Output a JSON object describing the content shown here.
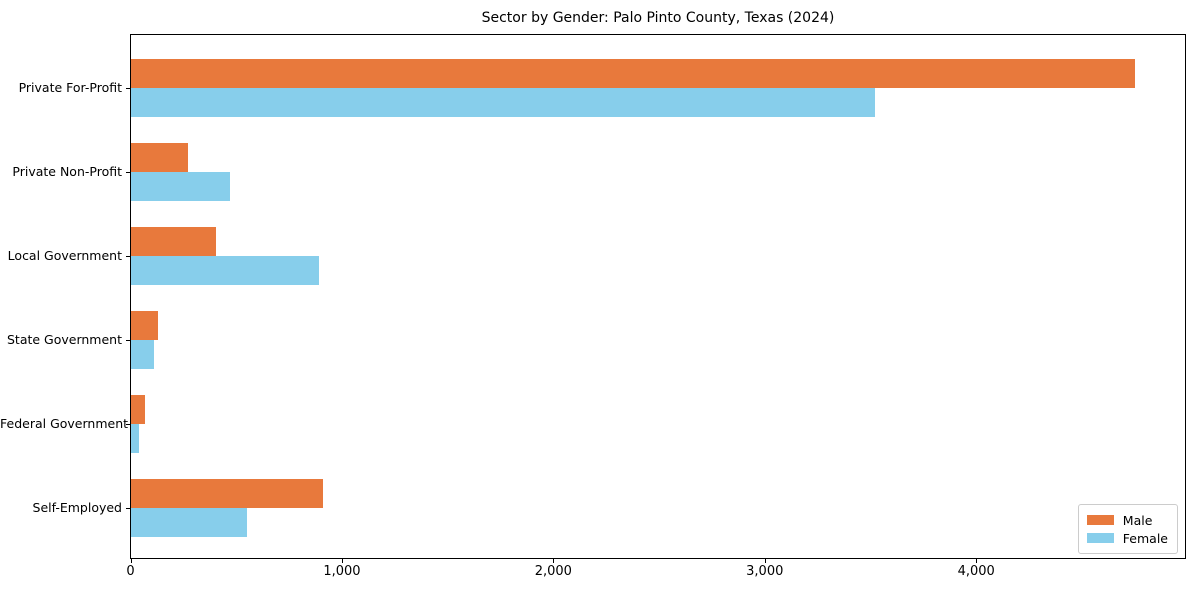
{
  "figure": {
    "title": "Sector by Gender: Palo Pinto County, Texas (2024)"
  },
  "chart_data": {
    "type": "bar",
    "orientation": "horizontal",
    "title": "Sector by Gender: Palo Pinto County, Texas (2024)",
    "categories": [
      "Private For-Profit",
      "Private Non-Profit",
      "Local Government",
      "State Government",
      "Federal Government",
      "Self-Employed"
    ],
    "series": [
      {
        "name": "Male",
        "color": "#e8793c",
        "values": [
          4750,
          270,
          400,
          130,
          65,
          910
        ]
      },
      {
        "name": "Female",
        "color": "#87ceeb",
        "values": [
          3520,
          470,
          890,
          110,
          40,
          550
        ]
      }
    ],
    "xlabel": "",
    "ylabel": "",
    "xlim": [
      0,
      4990
    ],
    "xticks": [
      0,
      1000,
      2000,
      3000,
      4000
    ],
    "xtick_labels": [
      "0",
      "1,000",
      "2,000",
      "3,000",
      "4,000"
    ],
    "legend_position": "lower right",
    "grid": false,
    "background_color": "#ffffff",
    "spine_color": "#000000"
  }
}
